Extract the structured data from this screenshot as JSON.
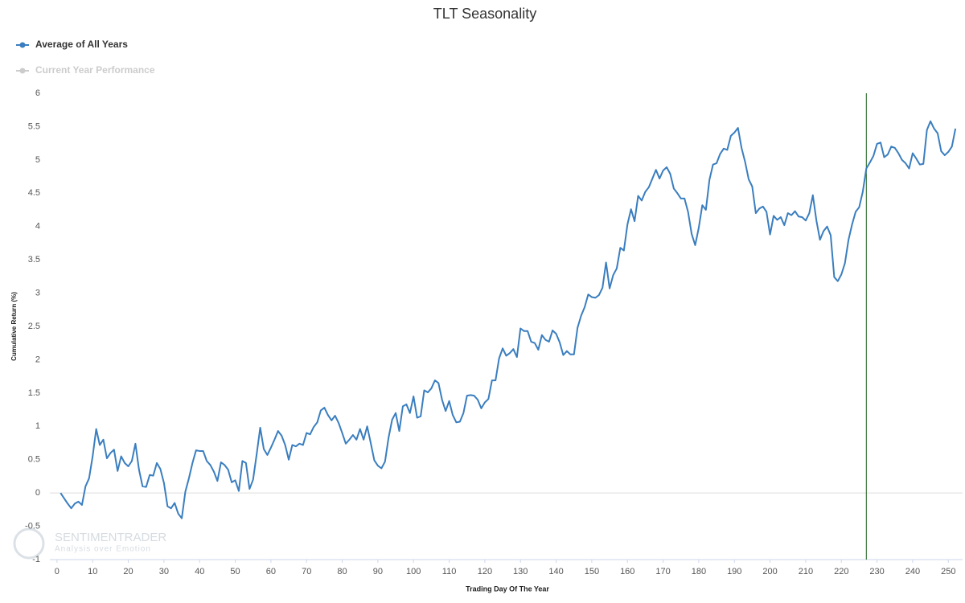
{
  "chart_data": {
    "type": "line",
    "title": "TLT Seasonality",
    "x_label": "Trading Day Of The Year",
    "y_label": "Cumulative Return (%)",
    "xlim": [
      -2,
      254
    ],
    "ylim": [
      -1,
      6
    ],
    "xticks": [
      0,
      10,
      20,
      30,
      40,
      50,
      60,
      70,
      80,
      90,
      100,
      110,
      120,
      130,
      140,
      150,
      160,
      170,
      180,
      190,
      200,
      210,
      220,
      230,
      240,
      250
    ],
    "yticks": [
      -1,
      -0.5,
      0,
      0.5,
      1,
      1.5,
      2,
      2.5,
      3,
      3.5,
      4,
      4.5,
      5,
      5.5,
      6
    ],
    "zero_line": true,
    "marker_x": 227,
    "marker_color": "#1a5e1a",
    "x": [
      1,
      2,
      3,
      4,
      5,
      6,
      7,
      8,
      9,
      10,
      11,
      12,
      13,
      14,
      15,
      16,
      17,
      18,
      19,
      20,
      21,
      22,
      23,
      24,
      25,
      26,
      27,
      28,
      29,
      30,
      31,
      32,
      33,
      34,
      35,
      36,
      37,
      38,
      39,
      40,
      41,
      42,
      43,
      44,
      45,
      46,
      47,
      48,
      49,
      50,
      51,
      52,
      53,
      54,
      55,
      56,
      57,
      58,
      59,
      60,
      61,
      62,
      63,
      64,
      65,
      66,
      67,
      68,
      69,
      70,
      71,
      72,
      73,
      74,
      75,
      76,
      77,
      78,
      79,
      80,
      81,
      82,
      83,
      84,
      85,
      86,
      87,
      88,
      89,
      90,
      91,
      92,
      93,
      94,
      95,
      96,
      97,
      98,
      99,
      100,
      101,
      102,
      103,
      104,
      105,
      106,
      107,
      108,
      109,
      110,
      111,
      112,
      113,
      114,
      115,
      116,
      117,
      118,
      119,
      120,
      121,
      122,
      123,
      124,
      125,
      126,
      127,
      128,
      129,
      130,
      131,
      132,
      133,
      134,
      135,
      136,
      137,
      138,
      139,
      140,
      141,
      142,
      143,
      144,
      145,
      146,
      147,
      148,
      149,
      150,
      151,
      152,
      153,
      154,
      155,
      156,
      157,
      158,
      159,
      160,
      161,
      162,
      163,
      164,
      165,
      166,
      167,
      168,
      169,
      170,
      171,
      172,
      173,
      174,
      175,
      176,
      177,
      178,
      179,
      180,
      181,
      182,
      183,
      184,
      185,
      186,
      187,
      188,
      189,
      190,
      191,
      192,
      193,
      194,
      195,
      196,
      197,
      198,
      199,
      200,
      201,
      202,
      203,
      204,
      205,
      206,
      207,
      208,
      209,
      210,
      211,
      212,
      213,
      214,
      215,
      216,
      217,
      218,
      219,
      220,
      221,
      222,
      223,
      224,
      225,
      226,
      227,
      228,
      229,
      230,
      231,
      232,
      233,
      234,
      235,
      236,
      237,
      238,
      239,
      240,
      241,
      242,
      243,
      244,
      245,
      246,
      247,
      248,
      249,
      250,
      251,
      252
    ],
    "series": [
      {
        "name": "Average of All Years",
        "color": "#3a7ebf",
        "values": [
          0,
          -0.08,
          -0.16,
          -0.23,
          -0.16,
          -0.13,
          -0.18,
          0.1,
          0.22,
          0.55,
          0.96,
          0.72,
          0.8,
          0.52,
          0.6,
          0.65,
          0.33,
          0.55,
          0.45,
          0.4,
          0.48,
          0.74,
          0.35,
          0.1,
          0.09,
          0.27,
          0.26,
          0.45,
          0.36,
          0.15,
          -0.2,
          -0.23,
          -0.15,
          -0.31,
          -0.38,
          0.02,
          0.22,
          0.45,
          0.64,
          0.63,
          0.63,
          0.48,
          0.42,
          0.32,
          0.18,
          0.46,
          0.42,
          0.35,
          0.16,
          0.19,
          0.03,
          0.48,
          0.45,
          0.06,
          0.2,
          0.58,
          0.98,
          0.66,
          0.57,
          0.68,
          0.8,
          0.93,
          0.86,
          0.72,
          0.5,
          0.72,
          0.7,
          0.74,
          0.72,
          0.9,
          0.88,
          0.99,
          1.06,
          1.24,
          1.28,
          1.17,
          1.09,
          1.16,
          1.05,
          0.9,
          0.74,
          0.8,
          0.87,
          0.8,
          0.96,
          0.8,
          1.0,
          0.75,
          0.49,
          0.41,
          0.37,
          0.47,
          0.83,
          1.1,
          1.2,
          0.93,
          1.3,
          1.33,
          1.2,
          1.45,
          1.13,
          1.15,
          1.54,
          1.51,
          1.57,
          1.69,
          1.65,
          1.4,
          1.23,
          1.38,
          1.17,
          1.06,
          1.07,
          1.2,
          1.46,
          1.47,
          1.46,
          1.4,
          1.27,
          1.36,
          1.41,
          1.69,
          1.69,
          2.02,
          2.17,
          2.06,
          2.1,
          2.16,
          2.04,
          2.47,
          2.43,
          2.43,
          2.27,
          2.25,
          2.15,
          2.37,
          2.3,
          2.27,
          2.44,
          2.39,
          2.26,
          2.07,
          2.13,
          2.08,
          2.08,
          2.48,
          2.66,
          2.79,
          2.98,
          2.94,
          2.93,
          2.97,
          3.08,
          3.46,
          3.07,
          3.27,
          3.37,
          3.68,
          3.64,
          4.03,
          4.26,
          4.08,
          4.46,
          4.39,
          4.52,
          4.59,
          4.72,
          4.85,
          4.72,
          4.84,
          4.89,
          4.79,
          4.57,
          4.5,
          4.42,
          4.42,
          4.22,
          3.89,
          3.72,
          3.98,
          4.32,
          4.25,
          4.7,
          4.93,
          4.95,
          5.09,
          5.17,
          5.15,
          5.36,
          5.41,
          5.48,
          5.18,
          4.97,
          4.71,
          4.6,
          4.2,
          4.27,
          4.3,
          4.22,
          3.88,
          4.16,
          4.1,
          4.14,
          4.02,
          4.2,
          4.17,
          4.23,
          4.15,
          4.14,
          4.09,
          4.2,
          4.47,
          4.09,
          3.8,
          3.93,
          4.0,
          3.87,
          3.24,
          3.18,
          3.28,
          3.45,
          3.8,
          4.03,
          4.22,
          4.29,
          4.52,
          4.87,
          4.96,
          5.06,
          5.24,
          5.26,
          5.04,
          5.08,
          5.2,
          5.18,
          5.1,
          5.0,
          4.95,
          4.87,
          5.1,
          5.02,
          4.93,
          4.94,
          5.45,
          5.58,
          5.47,
          5.4,
          5.13,
          5.07,
          5.12,
          5.2,
          5.47
        ]
      }
    ],
    "hidden_series": [
      {
        "name": "Current Year Performance",
        "color": "#cccccc"
      }
    ],
    "watermark": {
      "name": "SENTIMENTRADER",
      "tagline": "Analysis over Emotion"
    }
  }
}
